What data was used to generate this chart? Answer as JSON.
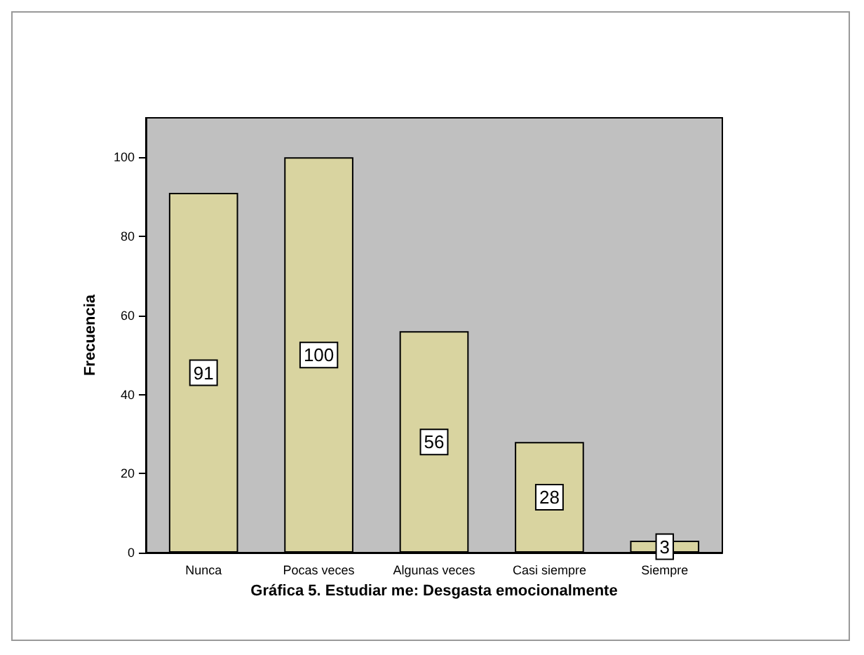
{
  "chart_data": {
    "type": "bar",
    "xlabel": "Gráfica 5. Estudiar me: Desgasta emocionalmente",
    "ylabel": "Frecuencia",
    "categories": [
      "Nunca",
      "Pocas veces",
      "Algunas veces",
      "Casi siempre",
      "Siempre"
    ],
    "values": [
      91,
      100,
      56,
      28,
      3
    ],
    "color": "#d9d4a0",
    "ylim": [
      0,
      110
    ],
    "yticks": [
      0,
      20,
      40,
      60,
      80,
      100
    ],
    "data_labels": true,
    "grid": false
  }
}
